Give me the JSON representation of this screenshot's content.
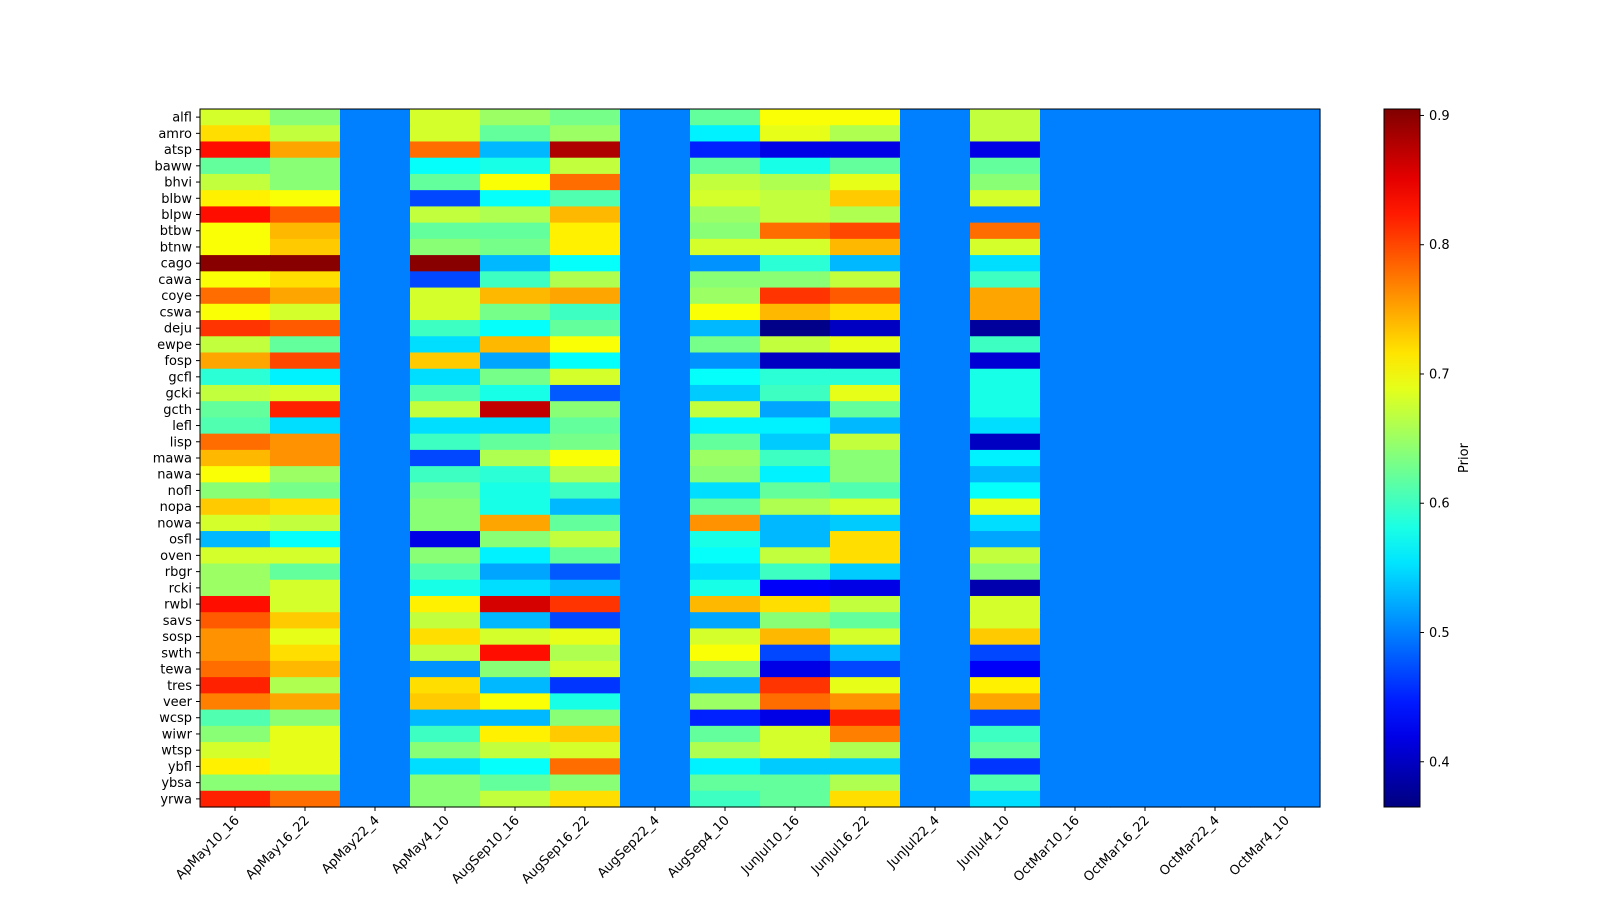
{
  "chart_data": {
    "type": "heatmap",
    "title": "",
    "xlabel": "",
    "ylabel": "",
    "colormap": "jet",
    "vmin": 0.365,
    "vmax": 0.905,
    "colorbar": {
      "label": "Prior",
      "ticks": [
        "0.4",
        "0.5",
        "0.6",
        "0.7",
        "0.8",
        "0.9"
      ]
    },
    "columns": [
      "ApMay10_16",
      "ApMay16_22",
      "ApMay22_4",
      "ApMay4_10",
      "AugSep10_16",
      "AugSep16_22",
      "AugSep22_4",
      "AugSep4_10",
      "JunJul10_16",
      "JunJul16_22",
      "JunJul22_4",
      "JunJul4_10",
      "OctMar10_16",
      "OctMar16_22",
      "OctMar22_4",
      "OctMar4_10"
    ],
    "rows": [
      "alfl",
      "amro",
      "atsp",
      "baww",
      "bhvi",
      "blbw",
      "blpw",
      "btbw",
      "btnw",
      "cago",
      "cawa",
      "coye",
      "cswa",
      "deju",
      "ewpe",
      "fosp",
      "gcfl",
      "gcki",
      "gcth",
      "lefl",
      "lisp",
      "mawa",
      "nawa",
      "nofl",
      "nopa",
      "nowa",
      "osfl",
      "oven",
      "rbgr",
      "rcki",
      "rwbl",
      "savs",
      "sosp",
      "swth",
      "tewa",
      "tres",
      "veer",
      "wcsp",
      "wiwr",
      "wtsp",
      "ybfl",
      "ybsa",
      "yrwa"
    ],
    "values": [
      [
        0.68,
        0.64,
        0.5,
        0.68,
        0.65,
        0.63,
        0.5,
        0.62,
        0.7,
        0.7,
        0.5,
        0.67,
        0.5,
        0.5,
        0.5,
        0.5
      ],
      [
        0.72,
        0.67,
        0.5,
        0.68,
        0.62,
        0.65,
        0.5,
        0.56,
        0.69,
        0.66,
        0.5,
        0.67,
        0.5,
        0.5,
        0.5,
        0.5
      ],
      [
        0.83,
        0.75,
        0.5,
        0.78,
        0.53,
        0.88,
        0.5,
        0.45,
        0.42,
        0.42,
        0.5,
        0.42,
        0.5,
        0.5,
        0.5,
        0.5
      ],
      [
        0.62,
        0.64,
        0.5,
        0.57,
        0.58,
        0.67,
        0.5,
        0.62,
        0.58,
        0.62,
        0.5,
        0.62,
        0.5,
        0.5,
        0.5,
        0.5
      ],
      [
        0.67,
        0.64,
        0.5,
        0.62,
        0.7,
        0.78,
        0.5,
        0.67,
        0.66,
        0.69,
        0.5,
        0.64,
        0.5,
        0.5,
        0.5,
        0.5
      ],
      [
        0.71,
        0.7,
        0.5,
        0.47,
        0.57,
        0.61,
        0.5,
        0.68,
        0.67,
        0.73,
        0.5,
        0.68,
        0.5,
        0.5,
        0.5,
        0.5
      ],
      [
        0.83,
        0.79,
        0.5,
        0.67,
        0.66,
        0.74,
        0.5,
        0.65,
        0.67,
        0.66,
        0.5,
        0.5,
        0.5,
        0.5,
        0.5,
        0.5
      ],
      [
        0.7,
        0.74,
        0.5,
        0.62,
        0.62,
        0.71,
        0.5,
        0.64,
        0.78,
        0.8,
        0.5,
        0.78,
        0.5,
        0.5,
        0.5,
        0.5
      ],
      [
        0.7,
        0.73,
        0.5,
        0.64,
        0.63,
        0.71,
        0.5,
        0.68,
        0.68,
        0.74,
        0.5,
        0.68,
        0.5,
        0.5,
        0.5,
        0.5
      ],
      [
        0.9,
        0.9,
        0.5,
        0.9,
        0.53,
        0.57,
        0.5,
        0.51,
        0.59,
        0.53,
        0.5,
        0.55,
        0.5,
        0.5,
        0.5,
        0.5
      ],
      [
        0.7,
        0.72,
        0.5,
        0.47,
        0.6,
        0.66,
        0.5,
        0.64,
        0.64,
        0.67,
        0.5,
        0.6,
        0.5,
        0.5,
        0.5,
        0.5
      ],
      [
        0.78,
        0.75,
        0.5,
        0.68,
        0.74,
        0.75,
        0.5,
        0.65,
        0.81,
        0.79,
        0.5,
        0.75,
        0.5,
        0.5,
        0.5,
        0.5
      ],
      [
        0.7,
        0.68,
        0.5,
        0.68,
        0.63,
        0.6,
        0.5,
        0.7,
        0.74,
        0.72,
        0.5,
        0.75,
        0.5,
        0.5,
        0.5,
        0.5
      ],
      [
        0.81,
        0.79,
        0.5,
        0.6,
        0.57,
        0.62,
        0.5,
        0.53,
        0.37,
        0.4,
        0.5,
        0.38,
        0.5,
        0.5,
        0.5,
        0.5
      ],
      [
        0.67,
        0.62,
        0.5,
        0.55,
        0.74,
        0.7,
        0.5,
        0.63,
        0.67,
        0.69,
        0.5,
        0.6,
        0.5,
        0.5,
        0.5,
        0.5
      ],
      [
        0.75,
        0.8,
        0.5,
        0.73,
        0.52,
        0.57,
        0.5,
        0.51,
        0.4,
        0.4,
        0.5,
        0.41,
        0.5,
        0.5,
        0.5,
        0.5
      ],
      [
        0.59,
        0.56,
        0.5,
        0.55,
        0.63,
        0.68,
        0.5,
        0.57,
        0.59,
        0.59,
        0.5,
        0.58,
        0.5,
        0.5,
        0.5,
        0.5
      ],
      [
        0.67,
        0.68,
        0.5,
        0.61,
        0.58,
        0.48,
        0.5,
        0.54,
        0.6,
        0.69,
        0.5,
        0.58,
        0.5,
        0.5,
        0.5,
        0.5
      ],
      [
        0.62,
        0.82,
        0.5,
        0.67,
        0.87,
        0.64,
        0.5,
        0.67,
        0.52,
        0.62,
        0.5,
        0.58,
        0.5,
        0.5,
        0.5,
        0.5
      ],
      [
        0.61,
        0.55,
        0.5,
        0.55,
        0.55,
        0.62,
        0.5,
        0.56,
        0.56,
        0.53,
        0.5,
        0.55,
        0.5,
        0.5,
        0.5,
        0.5
      ],
      [
        0.78,
        0.76,
        0.5,
        0.6,
        0.62,
        0.63,
        0.5,
        0.62,
        0.54,
        0.67,
        0.5,
        0.4,
        0.5,
        0.5,
        0.5,
        0.5
      ],
      [
        0.74,
        0.76,
        0.5,
        0.47,
        0.66,
        0.7,
        0.5,
        0.65,
        0.6,
        0.64,
        0.5,
        0.56,
        0.5,
        0.5,
        0.5,
        0.5
      ],
      [
        0.7,
        0.65,
        0.5,
        0.6,
        0.59,
        0.66,
        0.5,
        0.64,
        0.56,
        0.64,
        0.5,
        0.53,
        0.5,
        0.5,
        0.5,
        0.5
      ],
      [
        0.64,
        0.63,
        0.5,
        0.63,
        0.58,
        0.6,
        0.5,
        0.55,
        0.62,
        0.61,
        0.5,
        0.57,
        0.5,
        0.5,
        0.5,
        0.5
      ],
      [
        0.73,
        0.72,
        0.5,
        0.64,
        0.58,
        0.53,
        0.5,
        0.62,
        0.66,
        0.68,
        0.5,
        0.69,
        0.5,
        0.5,
        0.5,
        0.5
      ],
      [
        0.68,
        0.67,
        0.5,
        0.64,
        0.75,
        0.62,
        0.5,
        0.76,
        0.53,
        0.54,
        0.5,
        0.55,
        0.5,
        0.5,
        0.5,
        0.5
      ],
      [
        0.53,
        0.57,
        0.5,
        0.42,
        0.64,
        0.67,
        0.5,
        0.58,
        0.53,
        0.72,
        0.5,
        0.52,
        0.5,
        0.5,
        0.5,
        0.5
      ],
      [
        0.68,
        0.68,
        0.5,
        0.64,
        0.56,
        0.62,
        0.5,
        0.57,
        0.67,
        0.72,
        0.5,
        0.67,
        0.5,
        0.5,
        0.5,
        0.5
      ],
      [
        0.65,
        0.62,
        0.5,
        0.61,
        0.52,
        0.48,
        0.5,
        0.55,
        0.6,
        0.54,
        0.5,
        0.64,
        0.5,
        0.5,
        0.5,
        0.5
      ],
      [
        0.65,
        0.68,
        0.5,
        0.58,
        0.55,
        0.53,
        0.5,
        0.58,
        0.43,
        0.42,
        0.5,
        0.39,
        0.5,
        0.5,
        0.5,
        0.5
      ],
      [
        0.83,
        0.68,
        0.5,
        0.71,
        0.86,
        0.81,
        0.5,
        0.74,
        0.72,
        0.67,
        0.5,
        0.68,
        0.5,
        0.5,
        0.5,
        0.5
      ],
      [
        0.79,
        0.73,
        0.5,
        0.67,
        0.53,
        0.47,
        0.5,
        0.52,
        0.64,
        0.62,
        0.5,
        0.68,
        0.5,
        0.5,
        0.5,
        0.5
      ],
      [
        0.76,
        0.69,
        0.5,
        0.72,
        0.68,
        0.69,
        0.5,
        0.68,
        0.74,
        0.68,
        0.5,
        0.73,
        0.5,
        0.5,
        0.5,
        0.5
      ],
      [
        0.76,
        0.72,
        0.5,
        0.67,
        0.83,
        0.66,
        0.5,
        0.7,
        0.47,
        0.53,
        0.5,
        0.47,
        0.5,
        0.5,
        0.5,
        0.5
      ],
      [
        0.78,
        0.74,
        0.5,
        0.51,
        0.64,
        0.68,
        0.5,
        0.64,
        0.42,
        0.47,
        0.5,
        0.43,
        0.5,
        0.5,
        0.5,
        0.5
      ],
      [
        0.82,
        0.66,
        0.5,
        0.72,
        0.53,
        0.46,
        0.5,
        0.52,
        0.81,
        0.69,
        0.5,
        0.71,
        0.5,
        0.5,
        0.5,
        0.5
      ],
      [
        0.77,
        0.75,
        0.5,
        0.73,
        0.7,
        0.58,
        0.5,
        0.65,
        0.78,
        0.76,
        0.5,
        0.75,
        0.5,
        0.5,
        0.5,
        0.5
      ],
      [
        0.61,
        0.64,
        0.5,
        0.53,
        0.53,
        0.64,
        0.5,
        0.45,
        0.42,
        0.82,
        0.5,
        0.47,
        0.5,
        0.5,
        0.5,
        0.5
      ],
      [
        0.64,
        0.69,
        0.5,
        0.6,
        0.71,
        0.73,
        0.5,
        0.62,
        0.68,
        0.77,
        0.5,
        0.6,
        0.5,
        0.5,
        0.5,
        0.5
      ],
      [
        0.68,
        0.69,
        0.5,
        0.64,
        0.67,
        0.68,
        0.5,
        0.66,
        0.68,
        0.66,
        0.5,
        0.62,
        0.5,
        0.5,
        0.5,
        0.5
      ],
      [
        0.71,
        0.69,
        0.5,
        0.55,
        0.57,
        0.78,
        0.5,
        0.56,
        0.54,
        0.54,
        0.5,
        0.46,
        0.5,
        0.5,
        0.5,
        0.5
      ],
      [
        0.64,
        0.64,
        0.5,
        0.64,
        0.62,
        0.64,
        0.5,
        0.62,
        0.62,
        0.66,
        0.5,
        0.61,
        0.5,
        0.5,
        0.5,
        0.5
      ],
      [
        0.82,
        0.78,
        0.5,
        0.64,
        0.67,
        0.72,
        0.5,
        0.6,
        0.62,
        0.72,
        0.5,
        0.55,
        0.5,
        0.5,
        0.5,
        0.5
      ]
    ]
  }
}
